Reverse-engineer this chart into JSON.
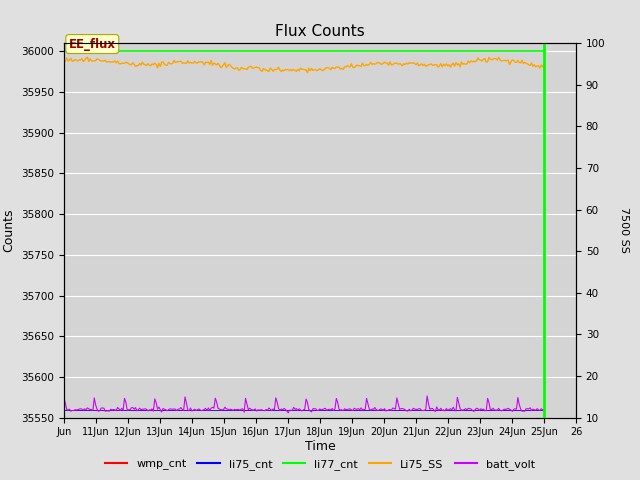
{
  "title": "Flux Counts",
  "xlabel": "Time",
  "ylabel_left": "Counts",
  "ylabel_right": "7500 SS",
  "ylim_left": [
    35550,
    36010
  ],
  "ylim_right": [
    10,
    100
  ],
  "x_start": 10,
  "x_end": 26,
  "x_ticks": [
    10,
    11,
    12,
    13,
    14,
    15,
    16,
    17,
    18,
    19,
    20,
    21,
    22,
    23,
    24,
    25,
    26
  ],
  "x_tick_labels": [
    "Jun",
    "11Jun",
    "12Jun",
    "13Jun",
    "14Jun",
    "15Jun",
    "16Jun",
    "17Jun",
    "18Jun",
    "19Jun",
    "20Jun",
    "21Jun",
    "22Jun",
    "23Jun",
    "24Jun",
    "25Jun",
    "26"
  ],
  "li77_vline_x": 25,
  "orange_line_mean": 35983,
  "purple_line_mean": 35560,
  "background_color": "#e0e0e0",
  "plot_bg_color": "#d4d4d4",
  "grid_color": "#ffffff",
  "annotation_box_color": "#ffffcc",
  "annotation_text": "EE_flux",
  "annotation_text_color": "#990000",
  "legend_entries": [
    "wmp_cnt",
    "li75_cnt",
    "li77_cnt",
    "Li75_SS",
    "batt_volt"
  ],
  "legend_colors": [
    "#ff0000",
    "#0000ff",
    "#00ff00",
    "#ffa500",
    "#cc00ff"
  ],
  "yticks_left": [
    35550,
    35600,
    35650,
    35700,
    35750,
    35800,
    35850,
    35900,
    35950,
    36000
  ],
  "yticks_right": [
    10,
    20,
    30,
    40,
    50,
    60,
    70,
    80,
    90,
    100
  ]
}
